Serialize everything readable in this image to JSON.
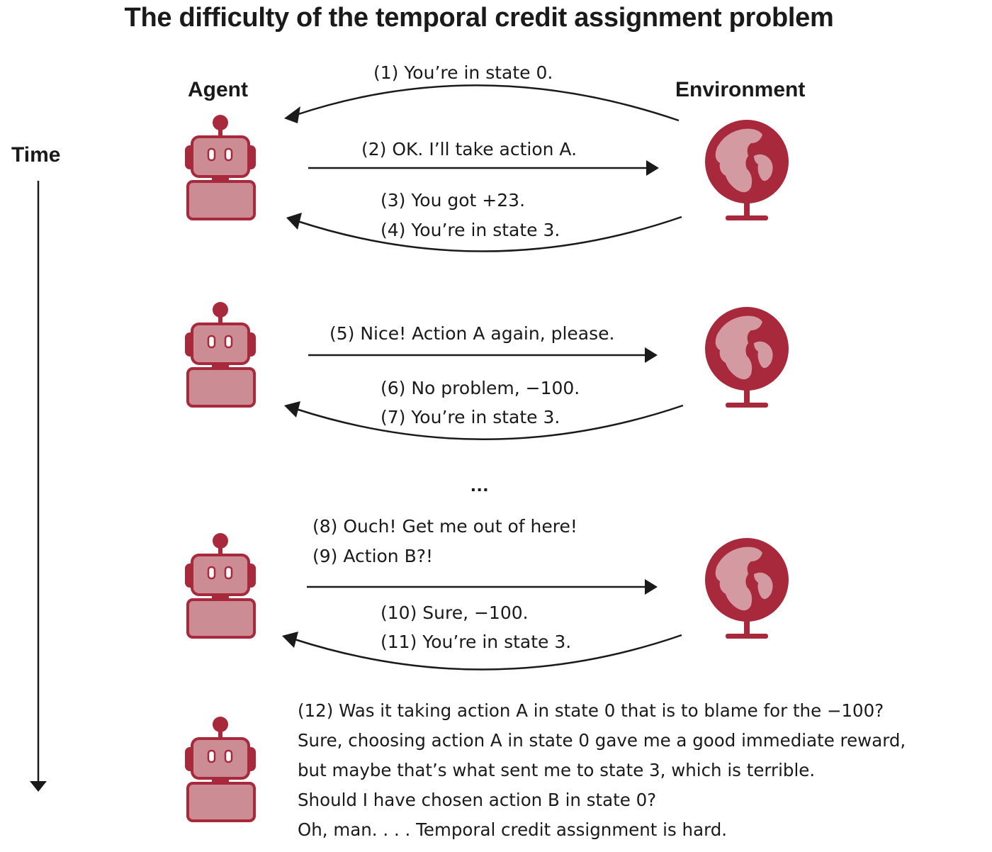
{
  "title": "The difficulty of the temporal credit assignment problem",
  "headers": {
    "agent": "Agent",
    "environment": "Environment",
    "time": "Time"
  },
  "colors": {
    "robot_dark": "#a8283c",
    "robot_light": "#cb8c93",
    "globe_dark": "#a8283c",
    "globe_light": "#d49aa1",
    "line": "#1a1a1a"
  },
  "icons": {
    "agent": "robot-icon",
    "environment": "globe-icon"
  },
  "messages": [
    {
      "id": "m1",
      "text": "(1) You’re in state 0."
    },
    {
      "id": "m2",
      "text": "(2) OK. I’ll take action A."
    },
    {
      "id": "m3",
      "text": "(3) You got +23."
    },
    {
      "id": "m4",
      "text": "(4) You’re in state 3."
    },
    {
      "id": "m5",
      "text": "(5) Nice! Action A again, please."
    },
    {
      "id": "m6",
      "text": "(6) No problem, −100."
    },
    {
      "id": "m7",
      "text": "(7) You’re in state 3."
    },
    {
      "id": "m8",
      "text": "(8) Ouch! Get me out of here!"
    },
    {
      "id": "m9",
      "text": "(9) Action B?!"
    },
    {
      "id": "m10",
      "text": "(10) Sure, −100."
    },
    {
      "id": "m11",
      "text": "(11) You’re in state 3."
    }
  ],
  "ellipsis": "...",
  "thought_lines": [
    "(12) Was it taking action A in state 0 that is to blame for the −100?",
    "Sure, choosing action A in state 0 gave me a good immediate reward,",
    "but maybe that’s what sent me to state 3, which is terrible.",
    "Should I have chosen action B in state 0?",
    "Oh, man. . . . Temporal credit assignment is hard."
  ]
}
